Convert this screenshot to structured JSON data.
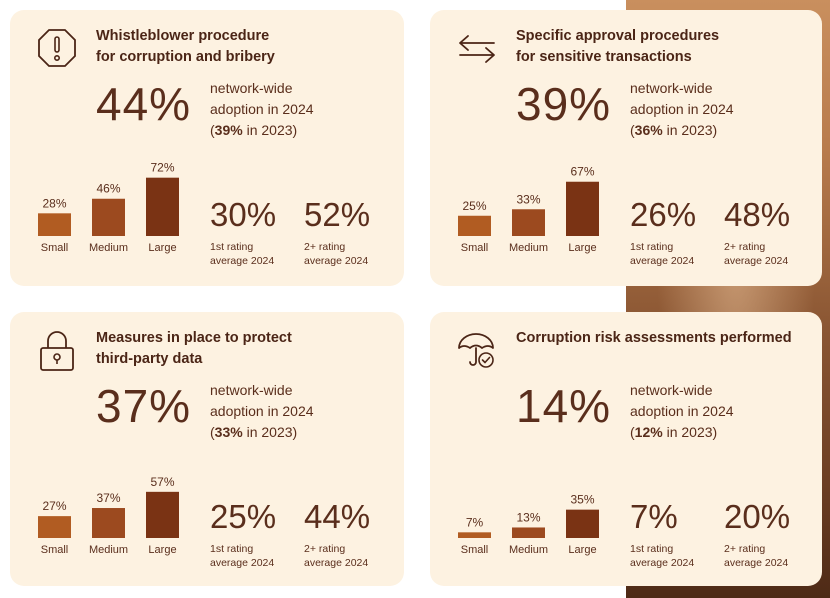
{
  "colors": {
    "card_bg": "#fdf2e1",
    "bar_small": "#b15c22",
    "bar_medium": "#9c4a1f",
    "bar_large": "#7a3314",
    "text": "#5a2e1c"
  },
  "cards": [
    {
      "icon": "exclamation-octagon-icon",
      "title_line1": "Whistleblower procedure",
      "title_line2": "for corruption and bribery",
      "adoption_pct": "44%",
      "adoption_line1": "network-wide",
      "adoption_line2": "adoption in 2024",
      "prev_pct": "39%",
      "prev_suffix": " in 2023)",
      "first_rating_pct": "30%",
      "first_rating_label1": "1st rating",
      "first_rating_label2": "average 2024",
      "second_rating_pct": "52%",
      "second_rating_label1": "2+ rating",
      "second_rating_label2": "average 2024"
    },
    {
      "icon": "swap-arrows-icon",
      "title_line1": "Specific approval procedures",
      "title_line2": "for sensitive transactions",
      "adoption_pct": "39%",
      "adoption_line1": "network-wide",
      "adoption_line2": "adoption in 2024",
      "prev_pct": "36%",
      "prev_suffix": " in 2023)",
      "first_rating_pct": "26%",
      "first_rating_label1": "1st rating",
      "first_rating_label2": "average 2024",
      "second_rating_pct": "48%",
      "second_rating_label1": "2+ rating",
      "second_rating_label2": "average 2024"
    },
    {
      "icon": "padlock-icon",
      "title_line1": "Measures in place to protect",
      "title_line2": "third-party data",
      "adoption_pct": "37%",
      "adoption_line1": "network-wide",
      "adoption_line2": "adoption in 2024",
      "prev_pct": "33%",
      "prev_suffix": " in 2023)",
      "first_rating_pct": "25%",
      "first_rating_label1": "1st rating",
      "first_rating_label2": "average 2024",
      "second_rating_pct": "44%",
      "second_rating_label1": "2+ rating",
      "second_rating_label2": "average 2024"
    },
    {
      "icon": "umbrella-check-icon",
      "title_line1": "Corruption risk assessments performed",
      "title_line2": "",
      "adoption_pct": "14%",
      "adoption_line1": "network-wide",
      "adoption_line2": "adoption in 2024",
      "prev_pct": "12%",
      "prev_suffix": " in 2023)",
      "first_rating_pct": "7%",
      "first_rating_label1": "1st rating",
      "first_rating_label2": "average 2024",
      "second_rating_pct": "20%",
      "second_rating_label1": "2+ rating",
      "second_rating_label2": "average 2024"
    }
  ],
  "chart_data": [
    {
      "type": "bar",
      "title": "",
      "categories": [
        "Small",
        "Medium",
        "Large"
      ],
      "values": [
        28,
        46,
        72
      ],
      "labels": [
        "28%",
        "46%",
        "72%"
      ],
      "ylim": [
        0,
        100
      ],
      "grid": false
    },
    {
      "type": "bar",
      "title": "",
      "categories": [
        "Small",
        "Medium",
        "Large"
      ],
      "values": [
        25,
        33,
        67
      ],
      "labels": [
        "25%",
        "33%",
        "67%"
      ],
      "ylim": [
        0,
        100
      ],
      "grid": false
    },
    {
      "type": "bar",
      "title": "",
      "categories": [
        "Small",
        "Medium",
        "Large"
      ],
      "values": [
        27,
        37,
        57
      ],
      "labels": [
        "27%",
        "37%",
        "57%"
      ],
      "ylim": [
        0,
        100
      ],
      "grid": false
    },
    {
      "type": "bar",
      "title": "",
      "categories": [
        "Small",
        "Medium",
        "Large"
      ],
      "values": [
        7,
        13,
        35
      ],
      "labels": [
        "7%",
        "13%",
        "35%"
      ],
      "ylim": [
        0,
        100
      ],
      "grid": false
    }
  ]
}
